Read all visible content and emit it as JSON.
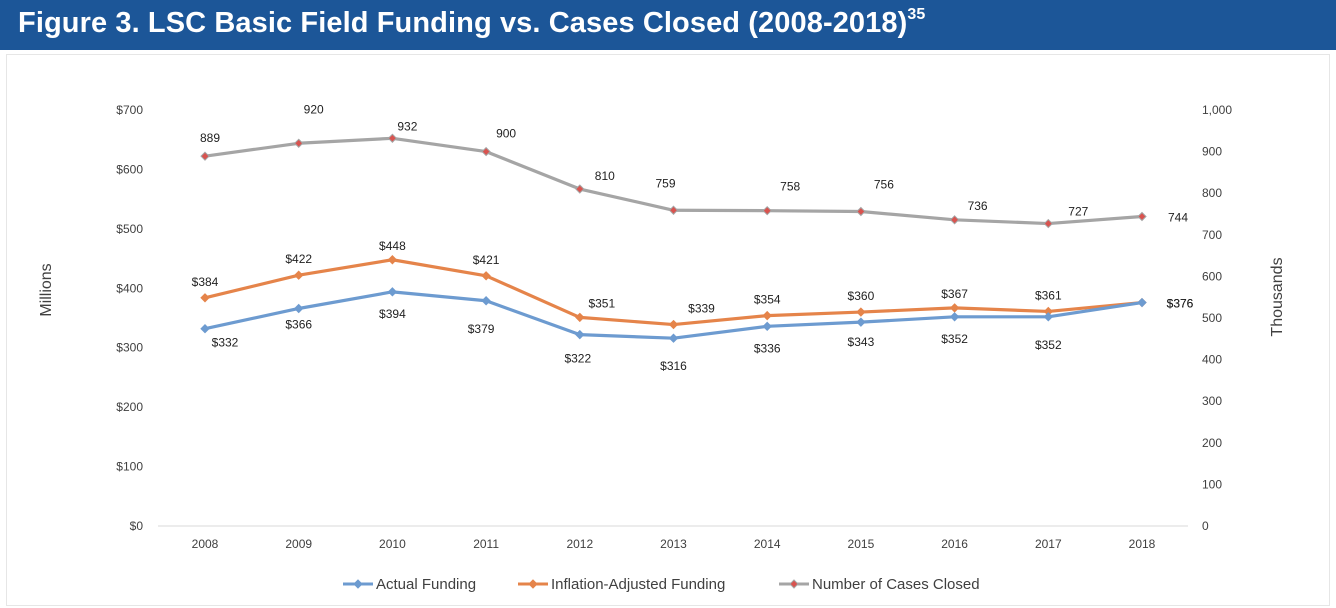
{
  "header": {
    "title": "Figure 3. LSC Basic Field Funding vs. Cases Closed (2008-2018)",
    "footnote": "35"
  },
  "chart_data": {
    "type": "line",
    "x": [
      "2008",
      "2009",
      "2010",
      "2011",
      "2012",
      "2013",
      "2014",
      "2015",
      "2016",
      "2017",
      "2018"
    ],
    "ylabel_left": "Millions",
    "ylabel_right": "Thousands",
    "ylim_left": [
      0,
      700
    ],
    "ylim_right": [
      0,
      1000
    ],
    "yticks_left": [
      "$0",
      "$100",
      "$200",
      "$300",
      "$400",
      "$500",
      "$600",
      "$700"
    ],
    "yticks_right": [
      "0",
      "100",
      "200",
      "300",
      "400",
      "500",
      "600",
      "700",
      "800",
      "900",
      "1,000"
    ],
    "grid": false,
    "legend_position": "bottom",
    "series": [
      {
        "name": "Actual Funding",
        "axis": "left",
        "color": "#6d9bd0",
        "values": [
          332,
          366,
          394,
          379,
          322,
          316,
          336,
          343,
          352,
          352,
          376
        ],
        "labels": [
          "$332",
          "$366",
          "$394",
          "$379",
          "$322",
          "$316",
          "$336",
          "$343",
          "$352",
          "$352",
          "$376"
        ]
      },
      {
        "name": "Inflation-Adjusted Funding",
        "axis": "left",
        "color": "#e5844a",
        "values": [
          384,
          422,
          448,
          421,
          351,
          339,
          354,
          360,
          367,
          361,
          376
        ],
        "labels": [
          "$384",
          "$422",
          "$448",
          "$421",
          "$351",
          "$339",
          "$354",
          "$360",
          "$367",
          "$361",
          "$376"
        ]
      },
      {
        "name": "Number of Cases Closed",
        "axis": "right",
        "color": "#a5a5a5",
        "marker_color": "#d9534f",
        "values": [
          889,
          920,
          932,
          900,
          810,
          759,
          758,
          756,
          736,
          727,
          744
        ],
        "labels": [
          "889",
          "920",
          "932",
          "900",
          "810",
          "759",
          "758",
          "756",
          "736",
          "727",
          "744"
        ]
      }
    ]
  }
}
